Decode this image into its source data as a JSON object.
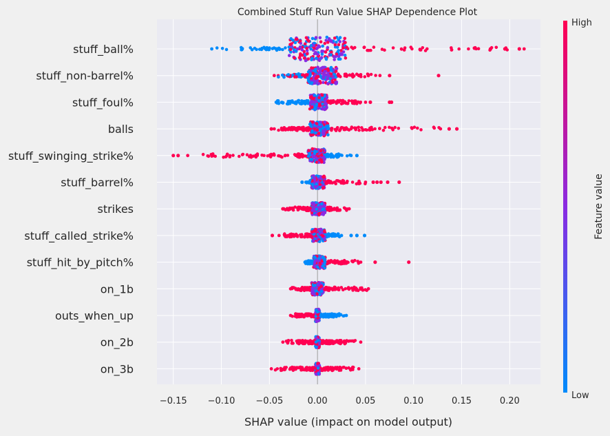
{
  "chart_data": {
    "type": "scatter",
    "title": "Combined Stuff Run Value SHAP Dependence Plot",
    "xlabel": "SHAP value (impact on model output)",
    "xlim": [
      -0.167,
      0.232
    ],
    "xticks": [
      -0.15,
      -0.1,
      -0.05,
      0.0,
      0.05,
      0.1,
      0.15,
      0.2
    ],
    "xtick_labels": [
      "−0.15",
      "−0.10",
      "−0.05",
      "0.00",
      "0.05",
      "0.10",
      "0.15",
      "0.20"
    ],
    "grid": true,
    "colors": {
      "low": "#008bfb",
      "high": "#ff0052",
      "mid": "#8a2be2",
      "plot_bg": "#eaeaf2",
      "fig_bg": "#f0f0f0",
      "grid": "#ffffff",
      "zero_line": "#999999"
    },
    "colorbar": {
      "label": "Feature value",
      "high_label": "High",
      "low_label": "Low"
    },
    "features": [
      {
        "name": "stuff_ball%",
        "min": -0.11,
        "max": 0.215,
        "left_color": "low",
        "right_color": "high",
        "core_left": -0.03,
        "core_right": 0.03,
        "outliers": [
          0.18,
          0.195,
          0.21
        ]
      },
      {
        "name": "stuff_non-barrel%",
        "min": -0.045,
        "max": 0.065,
        "left_color": "mix",
        "right_color": "high",
        "core_left": -0.01,
        "core_right": 0.02,
        "outliers": [
          0.075,
          0.126
        ]
      },
      {
        "name": "stuff_foul%",
        "min": -0.043,
        "max": 0.05,
        "left_color": "low",
        "right_color": "high",
        "core_left": -0.008,
        "core_right": 0.01,
        "outliers": [
          0.055,
          0.075,
          0.077
        ]
      },
      {
        "name": "balls",
        "min": -0.045,
        "max": 0.128,
        "left_color": "high",
        "right_color": "high",
        "core_left": -0.008,
        "core_right": 0.012,
        "outliers": [
          -0.048,
          0.137,
          0.145
        ]
      },
      {
        "name": "stuff_swinging_strike%",
        "min": -0.135,
        "max": 0.035,
        "left_color": "high",
        "right_color": "low",
        "core_left": -0.01,
        "core_right": 0.008,
        "outliers": [
          -0.15,
          -0.145,
          0.041
        ]
      },
      {
        "name": "stuff_barrel%",
        "min": -0.012,
        "max": 0.05,
        "left_color": "low",
        "right_color": "high",
        "core_left": -0.006,
        "core_right": 0.008,
        "outliers": [
          -0.016,
          0.058,
          0.062,
          0.066,
          0.073,
          0.085
        ]
      },
      {
        "name": "strikes",
        "min": -0.035,
        "max": 0.033,
        "left_color": "high",
        "right_color": "high",
        "core_left": -0.006,
        "core_right": 0.008,
        "outliers": [
          -0.036
        ]
      },
      {
        "name": "stuff_called_strike%",
        "min": -0.04,
        "max": 0.025,
        "left_color": "high",
        "right_color": "low",
        "core_left": -0.006,
        "core_right": 0.008,
        "outliers": [
          -0.047,
          0.035,
          0.041,
          0.049
        ]
      },
      {
        "name": "stuff_hit_by_pitch%",
        "min": -0.013,
        "max": 0.045,
        "left_color": "low",
        "right_color": "high",
        "core_left": -0.004,
        "core_right": 0.008,
        "outliers": [
          0.06,
          0.095
        ]
      },
      {
        "name": "on_1b",
        "min": -0.028,
        "max": 0.053,
        "left_color": "high",
        "right_color": "high",
        "core_left": -0.006,
        "core_right": 0.006,
        "outliers": []
      },
      {
        "name": "outs_when_up",
        "min": -0.028,
        "max": 0.03,
        "left_color": "high",
        "right_color": "low",
        "core_left": -0.002,
        "core_right": 0.002,
        "outliers": []
      },
      {
        "name": "on_2b",
        "min": -0.036,
        "max": 0.045,
        "left_color": "high",
        "right_color": "high",
        "core_left": -0.002,
        "core_right": 0.002,
        "outliers": []
      },
      {
        "name": "on_3b",
        "min": -0.048,
        "max": 0.043,
        "left_color": "high",
        "right_color": "high",
        "core_left": -0.002,
        "core_right": 0.002,
        "outliers": []
      }
    ]
  }
}
